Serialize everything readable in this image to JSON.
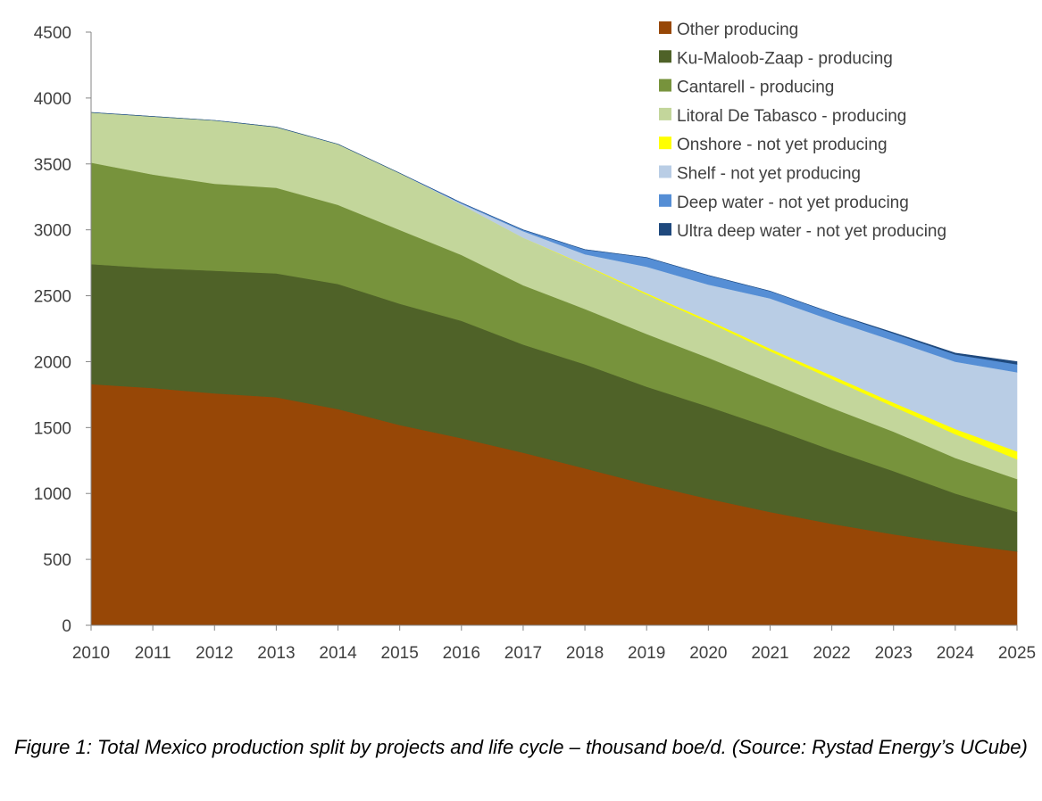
{
  "chart_data": {
    "type": "area",
    "stacked": true,
    "title": "",
    "xlabel": "",
    "ylabel": "",
    "x": [
      2010,
      2011,
      2012,
      2013,
      2014,
      2015,
      2016,
      2017,
      2018,
      2019,
      2020,
      2021,
      2022,
      2023,
      2024,
      2025
    ],
    "xticks": [
      "2010",
      "2011",
      "2012",
      "2013",
      "2014",
      "2015",
      "2016",
      "2017",
      "2018",
      "2019",
      "2020",
      "2021",
      "2022",
      "2023",
      "2024",
      "2025"
    ],
    "ylim": [
      0,
      4500
    ],
    "yticks": [
      "0",
      "500",
      "1000",
      "1500",
      "2000",
      "2500",
      "3000",
      "3500",
      "4000",
      "4500"
    ],
    "grid": false,
    "legend_position": "top-right",
    "series": [
      {
        "name": "Other producing",
        "color": "#974706",
        "values": [
          1830,
          1800,
          1760,
          1730,
          1640,
          1520,
          1420,
          1310,
          1190,
          1070,
          960,
          860,
          770,
          690,
          620,
          560
        ]
      },
      {
        "name": "Ku-Maloob-Zaap - producing",
        "color": "#4F6228",
        "values": [
          910,
          910,
          930,
          940,
          950,
          920,
          890,
          820,
          790,
          740,
          700,
          640,
          560,
          480,
          380,
          300
        ]
      },
      {
        "name": "Cantarell - producing",
        "color": "#77933C",
        "values": [
          770,
          710,
          660,
          650,
          600,
          560,
          500,
          450,
          420,
          400,
          370,
          340,
          320,
          300,
          270,
          250
        ]
      },
      {
        "name": "Litoral De Tabasco - producing",
        "color": "#C3D69B",
        "values": [
          380,
          440,
          480,
          460,
          460,
          430,
          380,
          360,
          330,
          300,
          270,
          240,
          220,
          190,
          180,
          150
        ]
      },
      {
        "name": "Onshore - not yet producing",
        "color": "#FFFF00",
        "values": [
          0,
          0,
          0,
          0,
          0,
          0,
          0,
          0,
          5,
          10,
          15,
          20,
          25,
          30,
          40,
          60
        ]
      },
      {
        "name": "Shelf - not yet producing",
        "color": "#B9CDE5",
        "values": [
          0,
          0,
          0,
          0,
          0,
          0,
          10,
          50,
          80,
          200,
          270,
          380,
          420,
          470,
          510,
          600
        ]
      },
      {
        "name": "Deep water - not yet producing",
        "color": "#558ED5",
        "values": [
          0,
          0,
          0,
          0,
          0,
          0,
          5,
          10,
          35,
          70,
          70,
          55,
          55,
          55,
          55,
          60
        ]
      },
      {
        "name": "Ultra deep water - not yet producing",
        "color": "#1F497D",
        "values": [
          0,
          0,
          0,
          0,
          0,
          0,
          0,
          0,
          0,
          0,
          0,
          0,
          0,
          5,
          10,
          20
        ]
      }
    ]
  },
  "caption": "Figure 1: Total Mexico production split by projects and life cycle – thousand boe/d. (Source: Rystad Energy’s UCube)"
}
